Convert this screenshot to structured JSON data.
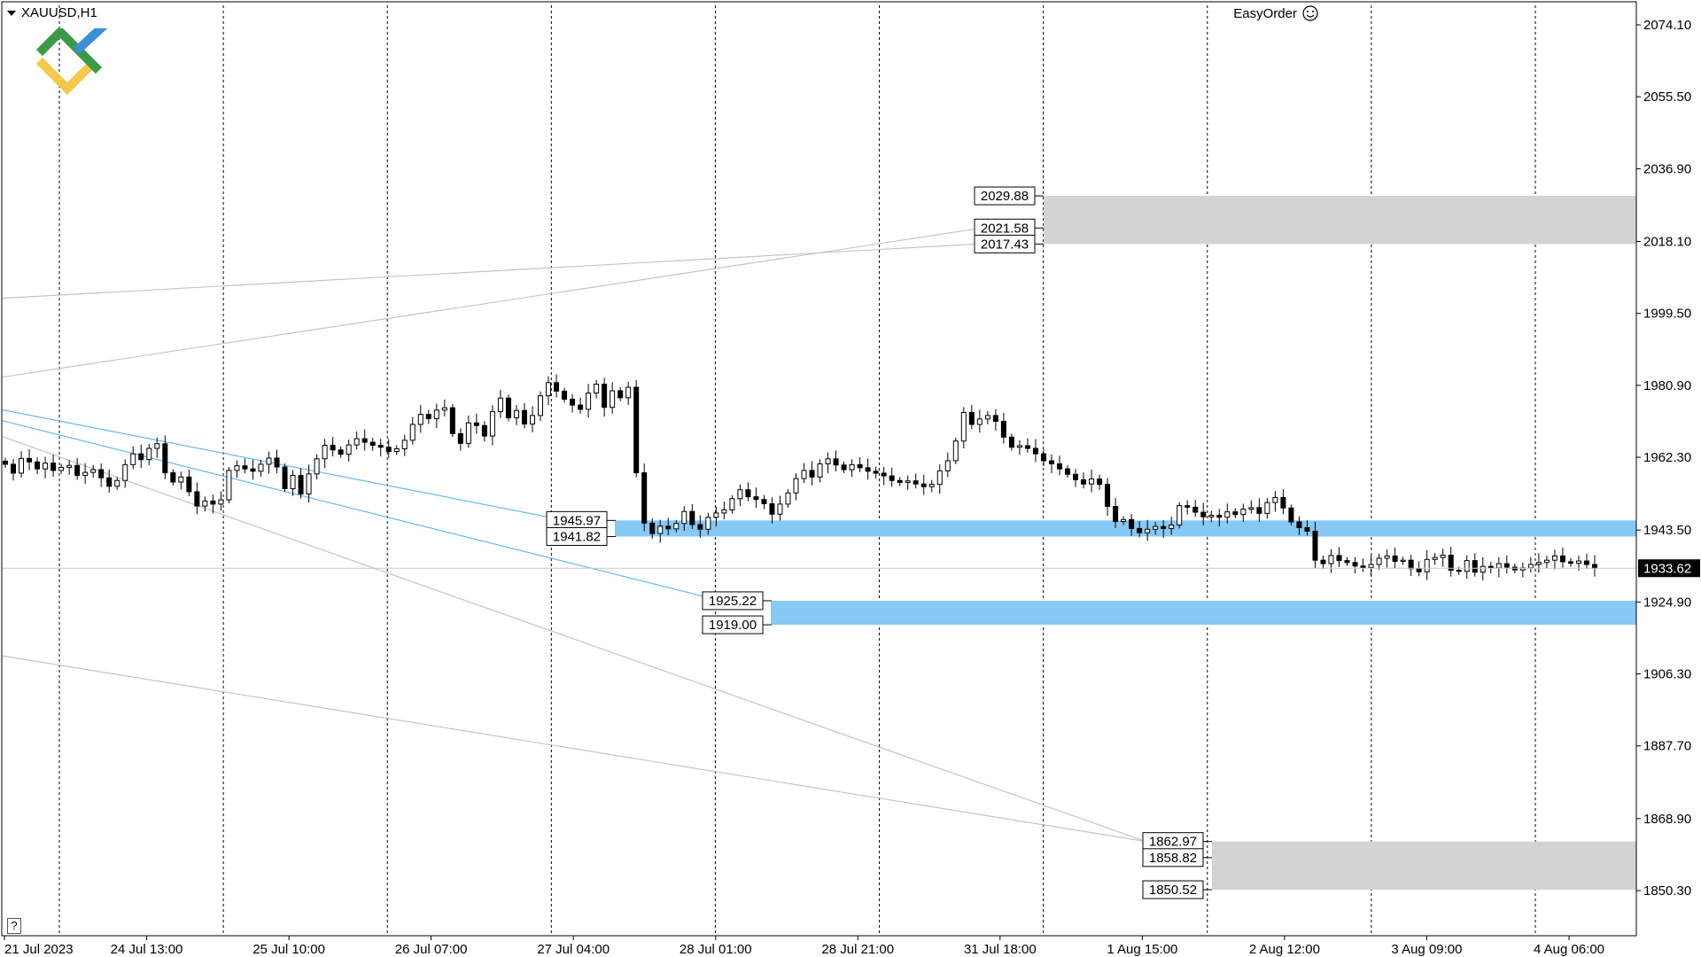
{
  "header": {
    "symbol": "XAUUSD,H1",
    "plugin_label": "EasyOrder"
  },
  "help_button": "?",
  "colors": {
    "background": "#ffffff",
    "candle": "#000000",
    "zone_blue": "#87c8f5",
    "zone_gray": "#d3d3d3",
    "trendline_blue": "#6cb8ec",
    "trendline_gray": "#c4c4c4",
    "grid": "#000000",
    "current_price_bg": "#000000",
    "logo_green": "#3a9b46",
    "logo_blue": "#3b8fd6",
    "logo_yellow": "#f2c94c"
  },
  "chart_data": {
    "type": "candlestick",
    "symbol": "XAUUSD",
    "timeframe": "H1",
    "current_price": "1933.62",
    "y_ticks": [
      "2074.10",
      "2055.50",
      "2036.90",
      "2018.10",
      "1999.50",
      "1980.90",
      "1962.30",
      "1943.50",
      "1924.90",
      "1906.30",
      "1887.70",
      "1868.90",
      "1850.30"
    ],
    "ylim": [
      1846.0,
      2078.0
    ],
    "x_ticks": [
      "21 Jul 2023",
      "24 Jul 13:00",
      "25 Jul 10:00",
      "26 Jul 07:00",
      "27 Jul 04:00",
      "28 Jul 01:00",
      "28 Jul 21:00",
      "31 Jul 18:00",
      "1 Aug 15:00",
      "2 Aug 12:00",
      "3 Aug 09:00",
      "4 Aug 06:00"
    ],
    "vertical_grid_count": 10,
    "zones": [
      {
        "color": "gray",
        "top": 2029.88,
        "bottom": 2017.43,
        "labels": [
          "2029.88",
          "2021.58",
          "2017.43"
        ]
      },
      {
        "color": "blue",
        "top": 1945.97,
        "bottom": 1941.82,
        "labels": [
          "1945.97",
          "1941.82"
        ]
      },
      {
        "color": "blue",
        "top": 1925.22,
        "bottom": 1919.0,
        "labels": [
          "1925.22",
          "1919.00"
        ]
      },
      {
        "color": "gray",
        "top": 1862.97,
        "bottom": 1850.52,
        "labels": [
          "1862.97",
          "1858.82",
          "1850.52"
        ]
      }
    ],
    "trendlines": [
      {
        "color": "gray",
        "from": [
          0.0,
          2003.4
        ],
        "to": [
          0.6,
          2017.5
        ]
      },
      {
        "color": "gray",
        "from": [
          0.0,
          1983.0
        ],
        "to": [
          0.6,
          2021.6
        ]
      },
      {
        "color": "blue",
        "from": [
          0.0,
          1974.6
        ],
        "to": [
          0.345,
          1945.97
        ]
      },
      {
        "color": "blue",
        "from": [
          0.0,
          1971.8
        ],
        "to": [
          0.44,
          1925.22
        ]
      },
      {
        "color": "gray",
        "from": [
          0.0,
          1967.7
        ],
        "to": [
          0.7,
          1862.97
        ]
      },
      {
        "color": "gray",
        "from": [
          0.0,
          1911.0
        ],
        "to": [
          0.7,
          1862.97
        ]
      }
    ],
    "candles_close": [
      1960.5,
      1958.2,
      1962.0,
      1961.1,
      1959.3,
      1960.8,
      1958.9,
      1959.7,
      1960.2,
      1957.6,
      1958.4,
      1959.1,
      1957.0,
      1954.8,
      1956.3,
      1960.4,
      1963.2,
      1961.7,
      1964.6,
      1965.8,
      1958.3,
      1955.9,
      1957.2,
      1953.4,
      1949.7,
      1951.0,
      1950.2,
      1951.3,
      1958.9,
      1960.1,
      1959.3,
      1958.7,
      1960.5,
      1962.1,
      1959.8,
      1954.2,
      1957.6,
      1952.8,
      1958.0,
      1961.9,
      1965.4,
      1964.2,
      1963.1,
      1965.5,
      1967.1,
      1966.2,
      1965.4,
      1964.9,
      1963.8,
      1964.5,
      1966.7,
      1970.8,
      1973.4,
      1972.3,
      1974.5,
      1975.1,
      1968.4,
      1965.9,
      1971.2,
      1970.5,
      1967.8,
      1974.1,
      1977.6,
      1972.5,
      1974.4,
      1970.9,
      1973.1,
      1978.2,
      1981.6,
      1979.4,
      1977.3,
      1975.8,
      1974.7,
      1978.9,
      1981.2,
      1975.2,
      1979.5,
      1977.7,
      1980.4,
      1958.3,
      1945.3,
      1942.6,
      1944.5,
      1943.8,
      1945.2,
      1948.3,
      1944.9,
      1943.7,
      1946.8,
      1947.9,
      1948.7,
      1951.6,
      1953.9,
      1952.1,
      1951.4,
      1950.3,
      1947.6,
      1950.2,
      1953.1,
      1956.8,
      1958.9,
      1957.2,
      1960.6,
      1961.9,
      1960.3,
      1959.1,
      1960.4,
      1959.6,
      1958.7,
      1958.2,
      1957.5,
      1956.3,
      1955.8,
      1956.2,
      1955.4,
      1954.7,
      1955.3,
      1958.8,
      1961.4,
      1966.5,
      1973.9,
      1970.8,
      1972.2,
      1973.1,
      1971.6,
      1967.5,
      1964.9,
      1965.3,
      1964.6,
      1963.2,
      1961.4,
      1960.6,
      1959.3,
      1957.9,
      1956.5,
      1955.4,
      1956.7,
      1955.3,
      1949.6,
      1945.7,
      1946.2,
      1943.9,
      1942.8,
      1943.7,
      1944.4,
      1943.9,
      1944.8,
      1949.8,
      1949.4,
      1948.1,
      1946.9,
      1947.3,
      1946.8,
      1948.2,
      1947.5,
      1948.9,
      1949.3,
      1947.8,
      1950.6,
      1951.9,
      1949.2,
      1945.6,
      1944.1,
      1943.2,
      1935.7,
      1934.8,
      1936.9,
      1935.6,
      1935.1,
      1934.2,
      1933.8,
      1934.6,
      1936.2,
      1936.8,
      1935.4,
      1935.7,
      1933.5,
      1932.7,
      1935.9,
      1936.4,
      1937.0,
      1933.1,
      1932.8,
      1935.6,
      1932.6,
      1934.1,
      1933.7,
      1934.8,
      1933.9,
      1933.2,
      1933.7,
      1934.6,
      1935.1,
      1935.7,
      1936.8,
      1935.3,
      1934.9,
      1935.5,
      1934.6,
      1933.6
    ]
  }
}
